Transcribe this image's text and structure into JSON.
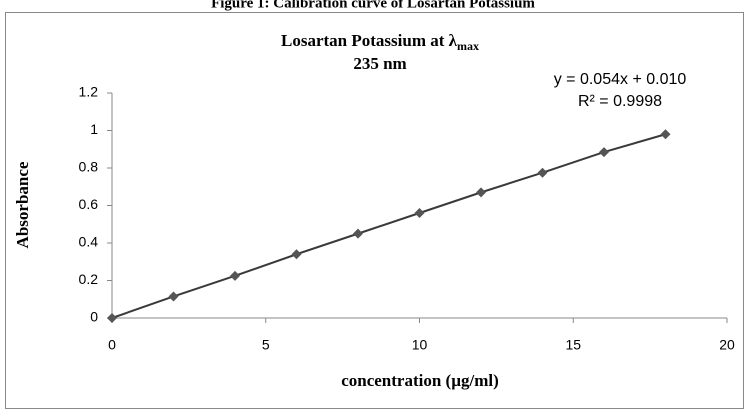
{
  "chart_data": {
    "type": "line",
    "caption": "Figure 1: Calibration curve of Losartan Potassium",
    "title": "Losartan Potassium at  λ",
    "title_subscript": "max",
    "subtitle": "235 nm",
    "annotations": [
      "y = 0.054x + 0.010",
      "R² = 0.9998"
    ],
    "xlabel": "concentration (µg/ml)",
    "ylabel": "Absorbance",
    "x": [
      0,
      2,
      4,
      6,
      8,
      10,
      12,
      14,
      16,
      18
    ],
    "series": [
      {
        "name": "Absorbance",
        "color": "#555555",
        "values": [
          0,
          0.115,
          0.225,
          0.34,
          0.45,
          0.56,
          0.67,
          0.775,
          0.885,
          0.98
        ]
      }
    ],
    "xlim": [
      0,
      20
    ],
    "xticks": [
      0,
      5,
      10,
      15,
      20
    ],
    "ylim": [
      0,
      1.2
    ],
    "yticks": [
      0,
      0.2,
      0.4,
      0.6,
      0.8,
      1,
      1.2
    ],
    "grid": false,
    "legend": false
  }
}
